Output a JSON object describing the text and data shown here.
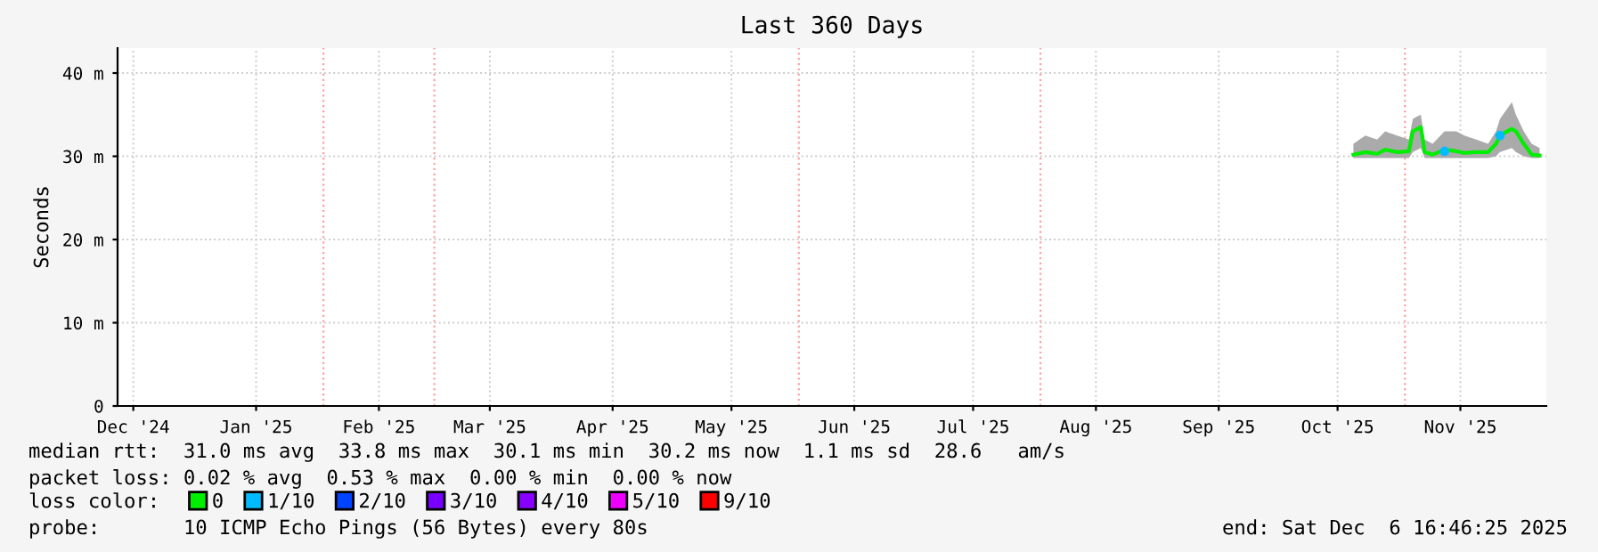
{
  "chart_data": {
    "type": "line",
    "title": "Last 360 Days",
    "ylabel": "Seconds",
    "xlim": [
      "2024-12-11T00:46",
      "2025-12-06T16:46"
    ],
    "xticks": [
      {
        "value": "2024-12-15",
        "label": "Dec '24"
      },
      {
        "value": "2025-01-15",
        "label": "Jan '25"
      },
      {
        "value": "2025-02-15",
        "label": "Feb '25"
      },
      {
        "value": "2025-03-15",
        "label": "Mar '25"
      },
      {
        "value": "2025-04-15",
        "label": "Apr '25"
      },
      {
        "value": "2025-05-15",
        "label": "May '25"
      },
      {
        "value": "2025-06-15",
        "label": "Jun '25"
      },
      {
        "value": "2025-07-15",
        "label": "Jul '25"
      },
      {
        "value": "2025-08-15",
        "label": "Aug '25"
      },
      {
        "value": "2025-09-15",
        "label": "Sep '25"
      },
      {
        "value": "2025-10-15",
        "label": "Oct '25"
      },
      {
        "value": "2025-11-15",
        "label": "Nov '25"
      }
    ],
    "ylim": [
      0,
      43
    ],
    "yticks": [
      0,
      {
        "value": 10,
        "label": "10 m"
      },
      {
        "value": 20,
        "label": "20 m"
      },
      {
        "value": 30,
        "label": "30 m"
      },
      {
        "value": 40,
        "label": "40 m"
      }
    ],
    "grid": true,
    "ref_lines": [
      {
        "axis": "x",
        "value": "2025-02-01",
        "color": "#ffa0a0",
        "line_style": "dotted"
      },
      {
        "axis": "x",
        "value": "2025-03-01",
        "color": "#ffa0a0",
        "line_style": "dotted"
      },
      {
        "axis": "x",
        "value": "2025-06-01",
        "color": "#ffa0a0",
        "line_style": "dotted"
      },
      {
        "axis": "x",
        "value": "2025-08-01",
        "color": "#ffa0a0",
        "line_style": "dotted"
      },
      {
        "axis": "x",
        "value": "2025-11-01",
        "color": "#ffa0a0",
        "line_style": "dotted"
      }
    ],
    "x": [
      "2025-10-19",
      "2025-10-22",
      "2025-10-25",
      "2025-10-27",
      "2025-10-30",
      "2025-11-02",
      "2025-11-03",
      "2025-11-05",
      "2025-11-06",
      "2025-11-08",
      "2025-11-11",
      "2025-11-14",
      "2025-11-16",
      "2025-11-19",
      "2025-11-22",
      "2025-11-24",
      "2025-11-25",
      "2025-11-28",
      "2025-11-29",
      "2025-12-01",
      "2025-12-03",
      "2025-12-05"
    ],
    "series": [
      {
        "name": "0",
        "color": "#00ee00",
        "values": [
          30.2,
          30.5,
          30.3,
          30.8,
          30.5,
          30.6,
          33,
          33.5,
          30.5,
          30.2,
          30.8,
          30.6,
          30.4,
          30.5,
          30.5,
          31.5,
          32.5,
          33.3,
          33,
          31.5,
          30.2,
          30.1
        ],
        "lower": [
          29.8,
          29.8,
          29.8,
          29.8,
          29.8,
          29.8,
          30.5,
          31,
          29.8,
          29.8,
          29.8,
          29.8,
          29.8,
          29.8,
          29.8,
          30,
          30.5,
          31,
          30.5,
          30,
          29.8,
          29.8
        ],
        "upper": [
          31.5,
          32.5,
          32,
          33,
          32.5,
          32,
          34.5,
          35,
          32,
          31.5,
          33,
          33,
          32.5,
          32,
          31.5,
          33,
          34.5,
          36.5,
          35,
          33,
          31.5,
          31
        ]
      },
      {
        "name": "1/10",
        "color": "#00bbff",
        "type": "scatter",
        "values": [
          null,
          null,
          null,
          null,
          null,
          null,
          null,
          null,
          null,
          null,
          30.6,
          null,
          null,
          null,
          null,
          null,
          32.5,
          null,
          null,
          null,
          null,
          null
        ]
      },
      {
        "name": "2/10",
        "color": "#0044ff",
        "values": [
          null,
          null,
          null,
          null,
          null,
          null,
          null,
          null,
          null,
          null,
          null,
          null,
          null,
          null,
          null,
          null,
          null,
          null,
          null,
          null,
          null,
          null
        ]
      },
      {
        "name": "3/10",
        "color": "#7700ff",
        "values": [
          null,
          null,
          null,
          null,
          null,
          null,
          null,
          null,
          null,
          null,
          null,
          null,
          null,
          null,
          null,
          null,
          null,
          null,
          null,
          null,
          null,
          null
        ]
      },
      {
        "name": "4/10",
        "color": "#8800ff",
        "values": [
          null,
          null,
          null,
          null,
          null,
          null,
          null,
          null,
          null,
          null,
          null,
          null,
          null,
          null,
          null,
          null,
          null,
          null,
          null,
          null,
          null,
          null
        ]
      },
      {
        "name": "5/10",
        "color": "#ee00ff",
        "values": [
          null,
          null,
          null,
          null,
          null,
          null,
          null,
          null,
          null,
          null,
          null,
          null,
          null,
          null,
          null,
          null,
          null,
          null,
          null,
          null,
          null,
          null
        ]
      },
      {
        "name": "9/10",
        "color": "#ff0000",
        "values": [
          null,
          null,
          null,
          null,
          null,
          null,
          null,
          null,
          null,
          null,
          null,
          null,
          null,
          null,
          null,
          null,
          null,
          null,
          null,
          null,
          null,
          null
        ]
      }
    ],
    "legend": "bottom",
    "legend_title": "loss color:",
    "annotations": [
      "median rtt:  31.0 ms avg  33.8 ms max  30.1 ms min  30.2 ms now  1.1 ms sd  28.6   am/s",
      "packet loss: 0.02 % avg  0.53 % max  0.00 % min  0.00 % now",
      "probe:       10 ICMP Echo Pings (56 Bytes) every 80s",
      "end: Sat Dec  6 16:46:25 2025"
    ]
  }
}
